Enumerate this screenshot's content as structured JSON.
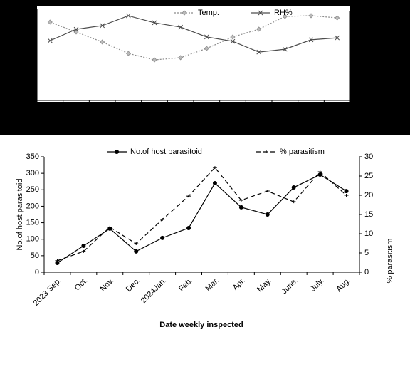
{
  "chart_data": [
    {
      "type": "line",
      "categories": [
        null,
        null,
        null,
        null,
        null,
        null,
        null,
        null,
        null,
        null,
        null,
        null
      ],
      "series": [
        {
          "name": "Temp.",
          "color": "#8c8c8c",
          "dash": "dotted",
          "marker": "diamond",
          "values": [
            5.97,
            5.21,
            4.45,
            3.58,
            3.09,
            3.26,
            3.96,
            4.83,
            5.43,
            6.4,
            6.46,
            6.29
          ]
        },
        {
          "name": "RH%",
          "color": "#4d4d4d",
          "dash": "solid",
          "marker": "x",
          "axis": "y2",
          "values": [
            2.63,
            3.15,
            3.32,
            3.77,
            3.45,
            3.25,
            2.8,
            2.6,
            2.11,
            2.24,
            2.67,
            2.76
          ]
        }
      ],
      "ylim": [
        0,
        7
      ],
      "yticks": [
        0,
        1,
        2,
        3,
        4,
        5,
        6,
        7
      ],
      "y2lim": [
        0,
        4
      ],
      "y2ticks": [
        0,
        1,
        2,
        3,
        4
      ],
      "show_tick_labels": false
    },
    {
      "type": "line",
      "xlabel": "Date weekly inspected",
      "ylabel": "No.of host parasitoid",
      "y2label": "% parasitism",
      "categories": [
        "2023 Sep.",
        "Oct.",
        "Nov.",
        "Dec.",
        "2024Jan.",
        "Feb.",
        "Mar.",
        "Apr.",
        "May.",
        "June.",
        "July.",
        "Aug."
      ],
      "series": [
        {
          "name": "No.of host parasitoid",
          "color": "#000000",
          "dash": "solid",
          "marker": "circle",
          "values": [
            28,
            80,
            132,
            63,
            104,
            134,
            270,
            197,
            175,
            257,
            296,
            246
          ]
        },
        {
          "name": "% parasitism",
          "color": "#000000",
          "dash": "dashed",
          "marker": "plus",
          "axis": "y2",
          "values": [
            3.0,
            5.4,
            11.7,
            7.4,
            13.7,
            19.8,
            27.2,
            18.7,
            21.1,
            18.3,
            26.1,
            20.0
          ]
        }
      ],
      "ylim": [
        0,
        350
      ],
      "yticks": [
        0,
        50,
        100,
        150,
        200,
        250,
        300,
        350
      ],
      "y2lim": [
        0,
        30
      ],
      "y2ticks": [
        0,
        5,
        10,
        15,
        20,
        25,
        30
      ],
      "show_tick_labels": true
    }
  ]
}
